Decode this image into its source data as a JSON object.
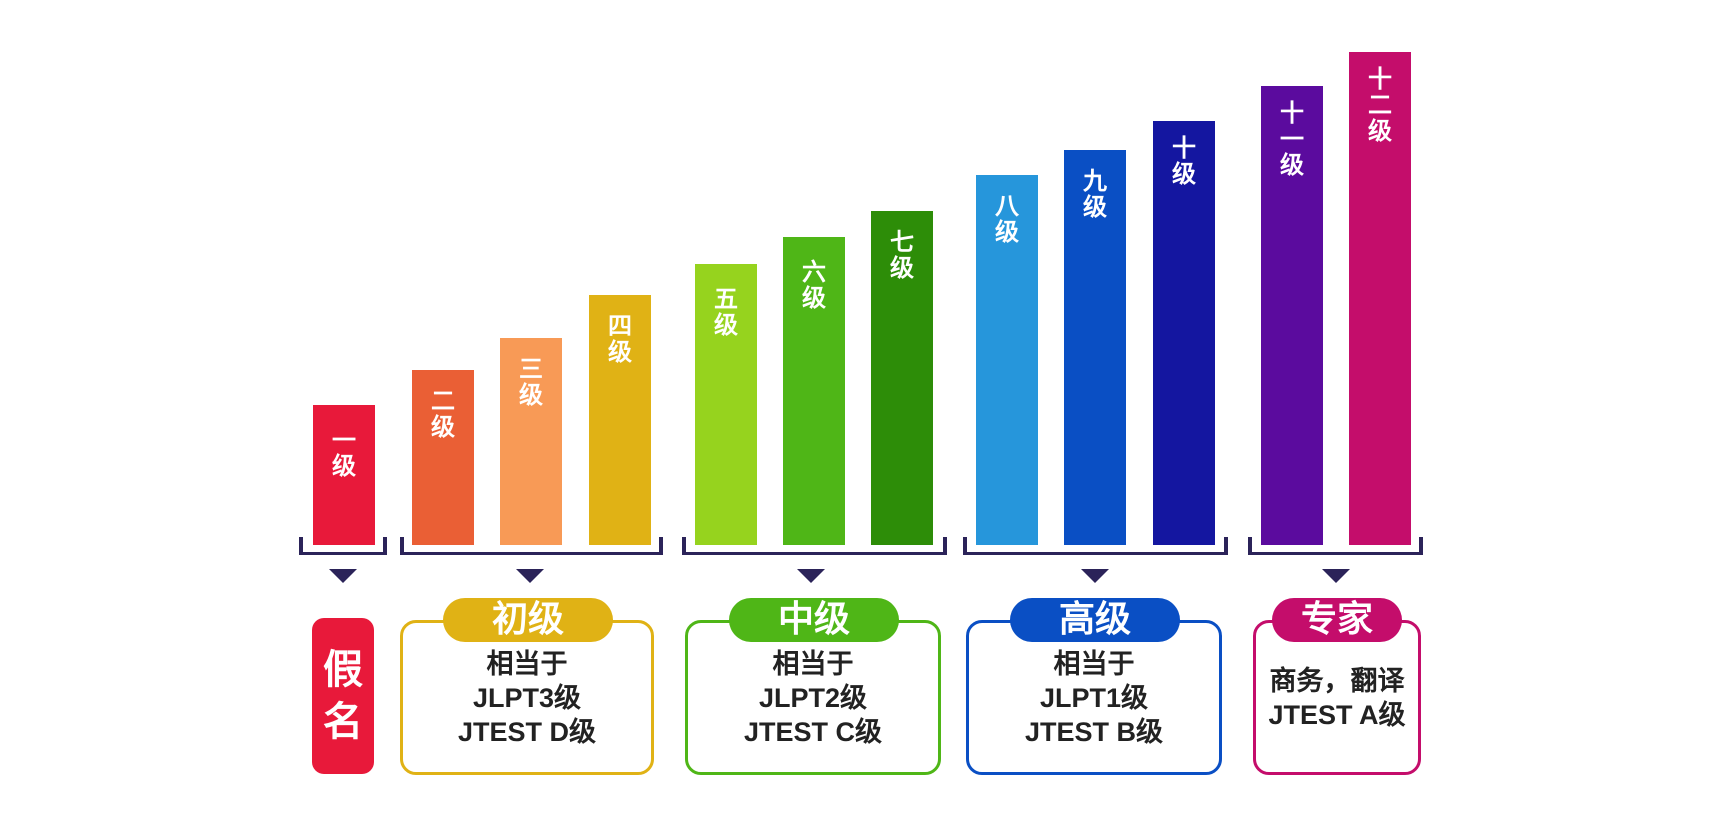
{
  "levels": [
    {
      "label": [
        "一",
        "级"
      ],
      "color": "#e8193a"
    },
    {
      "label": [
        "二",
        "级"
      ],
      "color": "#ea5f35"
    },
    {
      "label": [
        "三",
        "级"
      ],
      "color": "#f89a56"
    },
    {
      "label": [
        "四",
        "级"
      ],
      "color": "#e0b215"
    },
    {
      "label": [
        "五",
        "级"
      ],
      "color": "#96d31e"
    },
    {
      "label": [
        "六",
        "级"
      ],
      "color": "#4fb617"
    },
    {
      "label": [
        "七",
        "级"
      ],
      "color": "#2d8d08"
    },
    {
      "label": [
        "八",
        "级"
      ],
      "color": "#2696db"
    },
    {
      "label": [
        "九",
        "级"
      ],
      "color": "#0a4fc4"
    },
    {
      "label": [
        "十",
        "级"
      ],
      "color": "#1416a0"
    },
    {
      "label": [
        "十",
        "一",
        "级"
      ],
      "color": "#5b0b9e"
    },
    {
      "label": [
        "十",
        "二",
        "级"
      ],
      "color": "#c40d6b"
    }
  ],
  "groups": {
    "kana": {
      "text": [
        "假",
        "名"
      ],
      "color": "#e8193a"
    },
    "beginner": {
      "title": "初级",
      "color": "#e0b215",
      "lines": [
        "相当于",
        "JLPT3级",
        "JTEST D级"
      ]
    },
    "intermediate": {
      "title": "中级",
      "color": "#4fb617",
      "lines": [
        "相当于",
        "JLPT2级",
        "JTEST C级"
      ]
    },
    "advanced": {
      "title": "高级",
      "color": "#0a4fc4",
      "lines": [
        "相当于",
        "JLPT1级",
        "JTEST B级"
      ]
    },
    "expert": {
      "title": "专家",
      "color": "#c40d6b",
      "lines": [
        "商务，翻译",
        "JTEST A级"
      ]
    }
  },
  "colors": {
    "bracket": "#2b2359"
  }
}
